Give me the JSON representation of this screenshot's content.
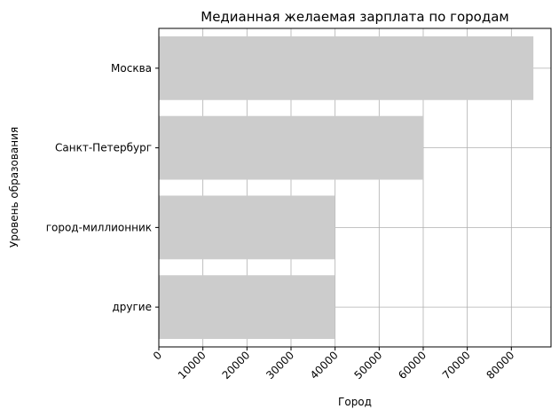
{
  "chart_data": {
    "type": "bar",
    "orientation": "horizontal",
    "title": "Медианная желаемая зарплата по городам",
    "xlabel": "Город",
    "ylabel": "Уровень образования",
    "categories": [
      "Москва",
      "Санкт-Петербург",
      "город-миллионник",
      "другие"
    ],
    "values": [
      85000,
      60000,
      40000,
      40000
    ],
    "xlim": [
      0,
      89000
    ],
    "xticks": [
      0,
      10000,
      20000,
      30000,
      40000,
      50000,
      60000,
      70000,
      80000
    ],
    "grid": true,
    "bar_color": "#cccccc",
    "grid_color": "#b0b0b0"
  }
}
